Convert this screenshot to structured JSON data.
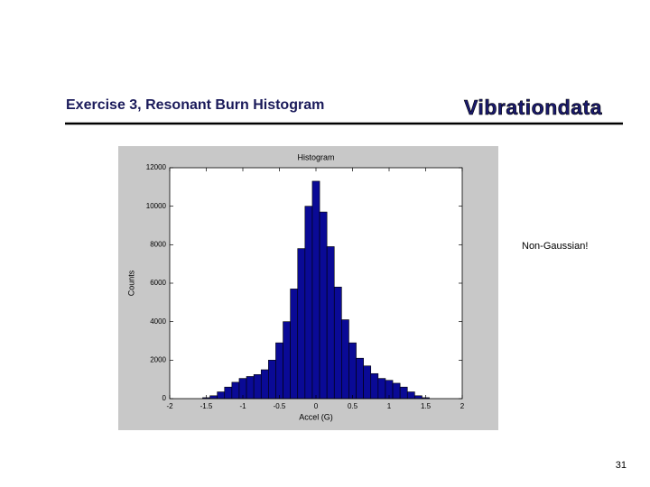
{
  "slide": {
    "title": "Exercise 3, Resonant Burn Histogram",
    "logo": "Vibrationdata",
    "note": "Non-Gaussian!",
    "page_number": "31"
  },
  "chart_data": {
    "type": "histogram",
    "title": "Histogram",
    "xlabel": "Accel (G)",
    "ylabel": "Counts",
    "bins": [
      -1.55,
      -1.45,
      -1.35,
      -1.25,
      -1.15,
      -1.05,
      -0.95,
      -0.85,
      -0.75,
      -0.65,
      -0.55,
      -0.45,
      -0.35,
      -0.25,
      -0.15,
      -0.05,
      0.05,
      0.15,
      0.25,
      0.35,
      0.45,
      0.55,
      0.65,
      0.75,
      0.85,
      0.95,
      1.05,
      1.15,
      1.25,
      1.35,
      1.45,
      1.55
    ],
    "values": [
      50,
      150,
      350,
      600,
      850,
      1050,
      1150,
      1250,
      1500,
      2000,
      2900,
      4000,
      5700,
      7800,
      10000,
      11300,
      9700,
      7900,
      5800,
      4100,
      2900,
      2100,
      1700,
      1300,
      1050,
      950,
      800,
      600,
      350,
      150,
      50
    ],
    "color": "#0a0a96",
    "xlim": [
      -2,
      2
    ],
    "xticks": [
      -2,
      -1.5,
      -1,
      -0.5,
      0,
      0.5,
      1,
      1.5,
      2
    ],
    "ylim": [
      0,
      12000
    ],
    "yticks": [
      0,
      2000,
      4000,
      6000,
      8000,
      10000,
      12000
    ]
  }
}
